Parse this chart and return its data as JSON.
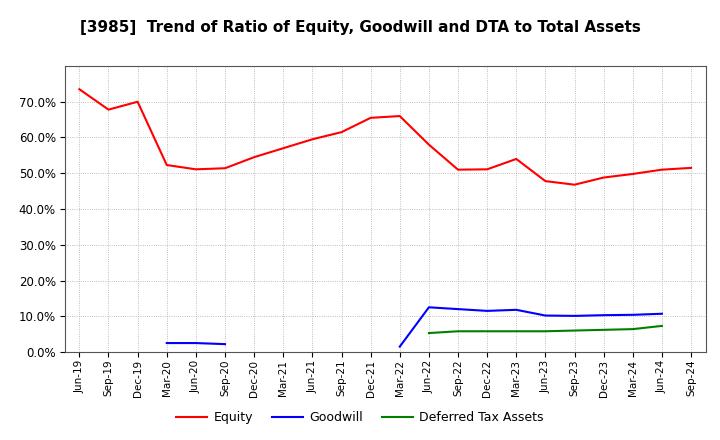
{
  "title": "[3985]  Trend of Ratio of Equity, Goodwill and DTA to Total Assets",
  "x_labels": [
    "Jun-19",
    "Sep-19",
    "Dec-19",
    "Mar-20",
    "Jun-20",
    "Sep-20",
    "Dec-20",
    "Mar-21",
    "Jun-21",
    "Sep-21",
    "Dec-21",
    "Mar-22",
    "Jun-22",
    "Sep-22",
    "Dec-22",
    "Mar-23",
    "Jun-23",
    "Sep-23",
    "Dec-23",
    "Mar-24",
    "Jun-24",
    "Sep-24"
  ],
  "equity": [
    0.735,
    0.678,
    0.7,
    0.523,
    0.511,
    0.514,
    0.545,
    0.57,
    0.595,
    0.615,
    0.655,
    0.66,
    0.58,
    0.51,
    0.511,
    0.54,
    0.478,
    0.468,
    0.488,
    0.498,
    0.51,
    0.515
  ],
  "goodwill": [
    null,
    null,
    null,
    0.025,
    0.025,
    0.022,
    null,
    null,
    null,
    null,
    null,
    0.015,
    0.125,
    0.12,
    0.115,
    0.118,
    0.102,
    0.101,
    0.103,
    0.104,
    0.107,
    null
  ],
  "dta": [
    null,
    null,
    null,
    null,
    null,
    null,
    null,
    null,
    null,
    null,
    null,
    null,
    0.053,
    0.058,
    0.058,
    0.058,
    0.058,
    0.06,
    0.062,
    0.064,
    0.073,
    null
  ],
  "equity_color": "#ff0000",
  "goodwill_color": "#0000ff",
  "dta_color": "#008000",
  "background_color": "#ffffff",
  "grid_color": "#aaaaaa",
  "ylim": [
    0.0,
    0.8
  ],
  "yticks": [
    0.0,
    0.1,
    0.2,
    0.3,
    0.4,
    0.5,
    0.6,
    0.7
  ],
  "legend_labels": [
    "Equity",
    "Goodwill",
    "Deferred Tax Assets"
  ],
  "title_fontsize": 11,
  "tick_fontsize": 7.5,
  "ytick_fontsize": 8.5
}
